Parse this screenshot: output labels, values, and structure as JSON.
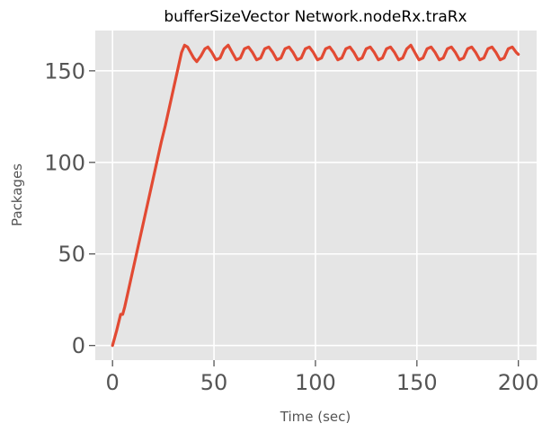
{
  "chart_data": {
    "type": "line",
    "title": "bufferSizeVector Network.nodeRx.traRx",
    "xlabel": "Time (sec)",
    "ylabel": "Packages",
    "xlim": [
      -8.5,
      209
    ],
    "ylim": [
      -8,
      172
    ],
    "xticks": [
      0,
      50,
      100,
      150,
      200
    ],
    "yticks": [
      0,
      50,
      100,
      150
    ],
    "grid": true,
    "background_color": "#e5e5e5",
    "series": [
      {
        "color": "#e24a33",
        "x": [
          0,
          2,
          4,
          5,
          6,
          8,
          10,
          12,
          14,
          16,
          18,
          20,
          22,
          24,
          26,
          28,
          30,
          32,
          34,
          35.5,
          37,
          38.5,
          40,
          41.5,
          43.5,
          45.5,
          47,
          49,
          51,
          53,
          55,
          57,
          59,
          61,
          63,
          65,
          67,
          69,
          71,
          73,
          75,
          77,
          79,
          81,
          83,
          85,
          87,
          89,
          91,
          93,
          95,
          97,
          99,
          101,
          103,
          105,
          107,
          109,
          111,
          113,
          115,
          117,
          119,
          121,
          123,
          125,
          127,
          129,
          131,
          133,
          135,
          137,
          139,
          141,
          143,
          145,
          147,
          149,
          151,
          153,
          155,
          157,
          159,
          161,
          163,
          165,
          167,
          169,
          171,
          173,
          175,
          177,
          179,
          181,
          183,
          185,
          187,
          189,
          191,
          193,
          195,
          197,
          199,
          200
        ],
        "y": [
          0,
          8,
          17,
          17,
          21,
          31,
          41,
          51,
          61,
          71,
          81,
          91,
          101,
          111,
          120,
          130,
          140,
          150,
          160,
          164,
          163,
          160,
          157,
          155,
          158,
          162,
          163,
          160,
          156,
          157,
          162,
          164,
          160,
          156,
          157,
          162,
          163,
          160,
          156,
          157,
          162,
          163,
          160,
          156,
          157,
          162,
          163,
          160,
          156,
          157,
          162,
          163,
          160,
          156,
          157,
          162,
          163,
          160,
          156,
          157,
          162,
          163,
          160,
          156,
          157,
          162,
          163,
          160,
          156,
          157,
          162,
          163,
          160,
          156,
          157,
          162,
          164,
          160,
          156,
          157,
          162,
          163,
          160,
          156,
          157,
          162,
          163,
          160,
          156,
          157,
          162,
          163,
          160,
          156,
          157,
          162,
          163,
          160,
          156,
          157,
          162,
          163,
          160,
          159
        ]
      }
    ]
  }
}
